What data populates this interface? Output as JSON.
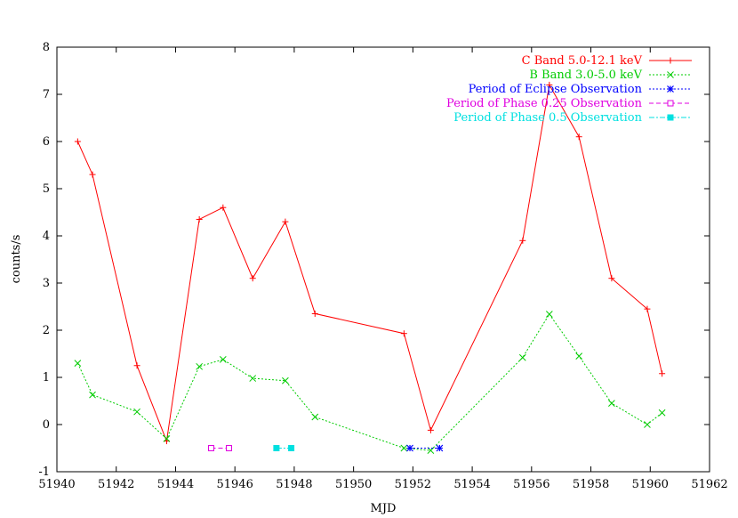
{
  "chart_data": {
    "type": "line",
    "title": "",
    "xlabel": "MJD",
    "ylabel": "counts/s",
    "xlim": [
      51940,
      51962
    ],
    "ylim": [
      -1,
      8
    ],
    "grid": false,
    "legend_position": "top-right",
    "x_ticks": [
      51940,
      51942,
      51944,
      51946,
      51948,
      51950,
      51952,
      51954,
      51956,
      51958,
      51960,
      51962
    ],
    "y_ticks": [
      -1,
      0,
      1,
      2,
      3,
      4,
      5,
      6,
      7,
      8
    ],
    "series": [
      {
        "name": "C Band 5.0-12.1 keV",
        "color": "#ff0000",
        "marker": "plus",
        "dash": "solid",
        "x": [
          51940.7,
          51941.2,
          51942.7,
          51943.7,
          51944.8,
          51945.6,
          51946.6,
          51947.7,
          51948.7,
          51951.7,
          51952.6,
          51955.7,
          51956.6,
          51957.6,
          51958.7,
          51959.9,
          51960.4
        ],
        "y": [
          6.0,
          5.3,
          1.25,
          -0.35,
          4.35,
          4.6,
          3.1,
          4.3,
          2.35,
          1.93,
          -0.12,
          3.9,
          7.2,
          6.1,
          3.1,
          2.45,
          1.08
        ]
      },
      {
        "name": "B Band 3.0-5.0 keV",
        "color": "#00cc00",
        "marker": "cross",
        "dash": "dotted",
        "x": [
          51940.7,
          51941.2,
          51942.7,
          51943.7,
          51944.8,
          51945.6,
          51946.6,
          51947.7,
          51948.7,
          51951.7,
          51952.6,
          51955.7,
          51956.6,
          51957.6,
          51958.7,
          51959.9,
          51960.4
        ],
        "y": [
          1.3,
          0.63,
          0.27,
          -0.3,
          1.23,
          1.38,
          0.98,
          0.93,
          0.16,
          -0.5,
          -0.55,
          1.42,
          2.34,
          1.45,
          0.45,
          0.0,
          0.25
        ]
      },
      {
        "name": "Period of Eclipse Observation",
        "color": "#0000ff",
        "marker": "star",
        "dash": "dotted",
        "x": [
          51951.9,
          51952.9
        ],
        "y": [
          -0.5,
          -0.5
        ]
      },
      {
        "name": "Period of Phase 0.25 Observation",
        "color": "#e000e0",
        "marker": "open-square",
        "dash": "dashed",
        "x": [
          51945.2,
          51945.8
        ],
        "y": [
          -0.5,
          -0.5
        ]
      },
      {
        "name": "Period of Phase 0.5 Observation",
        "color": "#00e0e0",
        "marker": "filled-square",
        "dash": "dashdot",
        "x": [
          51947.4,
          51947.9
        ],
        "y": [
          -0.5,
          -0.5
        ]
      }
    ]
  }
}
